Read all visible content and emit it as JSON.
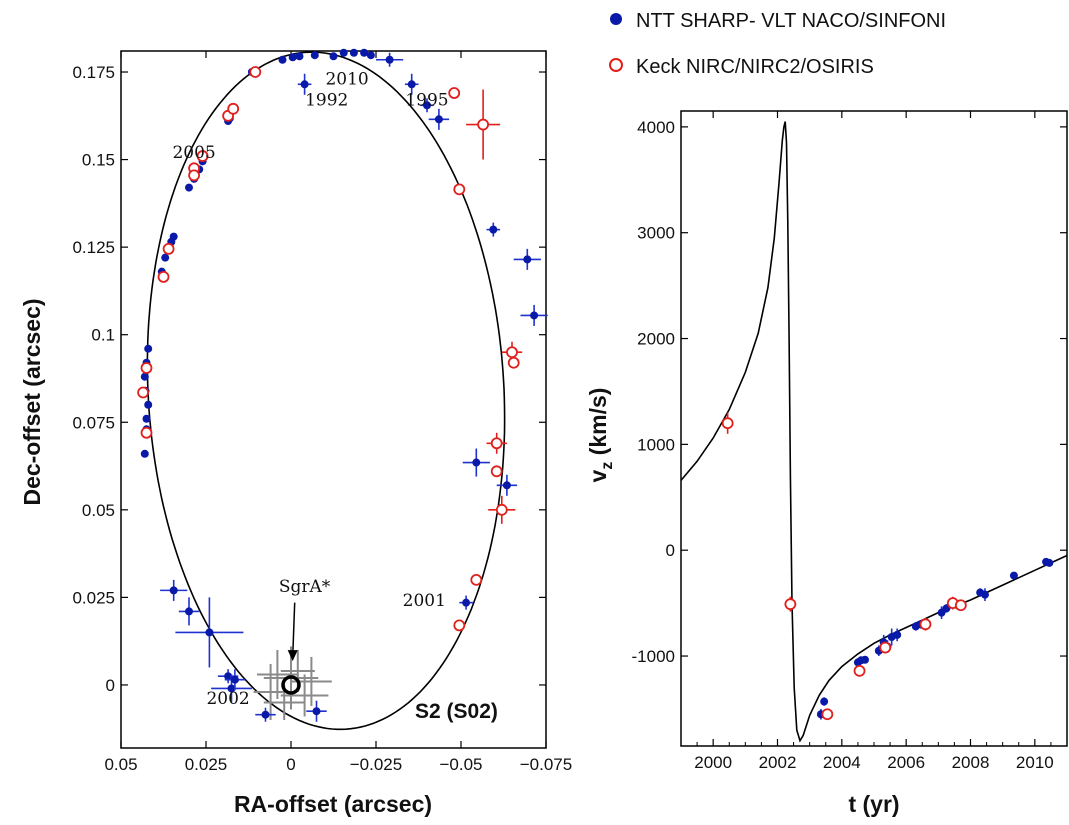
{
  "legend": {
    "entries": [
      {
        "label": "NTT SHARP- VLT NACO/SINFONI",
        "marker": "filled-circle",
        "color": "#0a1aa8"
      },
      {
        "label": "Keck NIRC/NIRC2/OSIRIS",
        "marker": "open-circle",
        "color": "#e0201b"
      }
    ]
  },
  "colors": {
    "ntt": "#1e32d0",
    "ntt_dot": "#0a1aa8",
    "keck": "#e0201b",
    "sgra": "#8a8a8a",
    "curve": "#000000"
  },
  "chart_data": [
    {
      "type": "scatter",
      "title": "",
      "panel_label": "S2 (S02)",
      "xlabel": "RA-offset (arcsec)",
      "ylabel": "Dec-offset (arcsec)",
      "xlim": [
        0.05,
        -0.075
      ],
      "ylim": [
        -0.018,
        0.181
      ],
      "x_ticks": [
        {
          "v": 0.05,
          "label": "0.05"
        },
        {
          "v": 0.025,
          "label": "0.025"
        },
        {
          "v": 0,
          "label": "0"
        },
        {
          "v": -0.025,
          "label": "−0.025"
        },
        {
          "v": -0.05,
          "label": "−0.05"
        },
        {
          "v": -0.075,
          "label": "−0.075"
        }
      ],
      "y_ticks": [
        {
          "v": 0,
          "label": "0"
        },
        {
          "v": 0.025,
          "label": "0.025"
        },
        {
          "v": 0.05,
          "label": "0.05"
        },
        {
          "v": 0.075,
          "label": "0.075"
        },
        {
          "v": 0.1,
          "label": "0.1"
        },
        {
          "v": 0.125,
          "label": "0.125"
        },
        {
          "v": 0.15,
          "label": "0.15"
        },
        {
          "v": 0.175,
          "label": "0.175"
        }
      ],
      "orbit_fit": {
        "center_x": -0.0103,
        "center_y": 0.084,
        "semi_axis_x": 0.0523,
        "semi_axis_y": 0.0968,
        "tilt_deg": -3.5
      },
      "annotations": [
        {
          "text": "2010",
          "x": -0.0165,
          "y": 0.1715
        },
        {
          "text": "1992",
          "x": -0.0105,
          "y": 0.1655
        },
        {
          "text": "1995",
          "x": -0.04,
          "y": 0.1655
        },
        {
          "text": "2005",
          "x": 0.0285,
          "y": 0.1505
        },
        {
          "text": "2001",
          "x": -0.0392,
          "y": 0.0225
        },
        {
          "text": "2002",
          "x": 0.0185,
          "y": -0.0055
        },
        {
          "text": "SgrA*",
          "x": -0.004,
          "y": 0.0265
        }
      ],
      "sgra": {
        "label": "SgrA*",
        "x": 0.0,
        "y": 0.0
      },
      "sgra_crosses": [
        [
          0.004,
          0.003,
          0.006,
          0.007
        ],
        [
          0.0,
          0.002,
          0.008,
          0.009
        ],
        [
          -0.004,
          -0.003,
          0.007,
          0.006
        ],
        [
          0.006,
          -0.002,
          0.005,
          0.008
        ],
        [
          0.002,
          -0.005,
          0.006,
          0.005
        ],
        [
          -0.002,
          0.004,
          0.005,
          0.006
        ],
        [
          -0.006,
          0.001,
          0.006,
          0.007
        ]
      ],
      "series": [
        {
          "name": "NTT SHARP- VLT NACO/SINFONI",
          "points": [
            [
              -0.004,
              0.1715,
              0.002,
              0.003
            ],
            [
              -0.0355,
              0.1715,
              0.002,
              0.003
            ],
            [
              -0.04,
              0.1655,
              0.002,
              0.002
            ],
            [
              -0.0435,
              0.1615,
              0.003,
              0.003
            ],
            [
              -0.029,
              0.1785,
              0.004,
              0.002
            ],
            [
              -0.0125,
              0.1795,
              0.0,
              0.0
            ],
            [
              -0.0155,
              0.1805,
              0.0,
              0.0
            ],
            [
              -0.0185,
              0.1805,
              0.0,
              0.0
            ],
            [
              -0.0215,
              0.1805,
              0.0,
              0.0
            ],
            [
              -0.0235,
              0.1798,
              0.0,
              0.0
            ],
            [
              -0.0025,
              0.1795,
              0.0,
              0.0
            ],
            [
              -0.0005,
              0.1792,
              0.0,
              0.0
            ],
            [
              0.0025,
              0.1785,
              0.0,
              0.0
            ],
            [
              -0.007,
              0.1798,
              0.0,
              0.0
            ],
            [
              0.0105,
              0.175,
              0.0,
              0.0
            ],
            [
              0.0115,
              0.175,
              0.0,
              0.0
            ],
            [
              0.018,
              0.1618,
              0.0,
              0.0
            ],
            [
              0.0185,
              0.161,
              0.0,
              0.0
            ],
            [
              0.026,
              0.1495,
              0.0,
              0.0
            ],
            [
              0.027,
              0.1472,
              0.0,
              0.0
            ],
            [
              0.0285,
              0.1445,
              0.0,
              0.0
            ],
            [
              0.03,
              0.142,
              0.0,
              0.0
            ],
            [
              0.0345,
              0.128,
              0.0,
              0.0
            ],
            [
              0.0352,
              0.1265,
              0.0,
              0.0
            ],
            [
              0.036,
              0.125,
              0.0,
              0.0
            ],
            [
              0.037,
              0.122,
              0.0,
              0.0
            ],
            [
              0.038,
              0.118,
              0.0,
              0.0
            ],
            [
              0.042,
              0.096,
              0.0,
              0.0
            ],
            [
              0.0425,
              0.092,
              0.0,
              0.0
            ],
            [
              0.043,
              0.088,
              0.0,
              0.0
            ],
            [
              0.0428,
              0.084,
              0.0,
              0.0
            ],
            [
              0.042,
              0.08,
              0.0,
              0.0
            ],
            [
              0.0425,
              0.076,
              0.0,
              0.0
            ],
            [
              0.0425,
              0.073,
              0.0,
              0.0
            ],
            [
              0.043,
              0.066,
              0.0,
              0.0
            ],
            [
              -0.0595,
              0.13,
              0.002,
              0.002
            ],
            [
              -0.0695,
              0.1215,
              0.004,
              0.003
            ],
            [
              -0.0715,
              0.1055,
              0.004,
              0.003
            ],
            [
              -0.0545,
              0.0635,
              0.004,
              0.004
            ],
            [
              -0.0635,
              0.057,
              0.003,
              0.003
            ],
            [
              -0.0515,
              0.0235,
              0.002,
              0.002
            ],
            [
              0.0345,
              0.027,
              0.004,
              0.003
            ],
            [
              0.03,
              0.021,
              0.003,
              0.004
            ],
            [
              0.024,
              0.015,
              0.01,
              0.01
            ],
            [
              0.0185,
              0.0025,
              0.003,
              0.002
            ],
            [
              0.0175,
              -0.001,
              0.006,
              0.004
            ],
            [
              0.0165,
              0.0015,
              0.003,
              0.003
            ],
            [
              0.0075,
              -0.0085,
              0.003,
              0.002
            ],
            [
              -0.0075,
              -0.0075,
              0.003,
              0.003
            ]
          ]
        },
        {
          "name": "Keck NIRC/NIRC2/OSIRIS",
          "points": [
            [
              -0.048,
              0.169,
              0.0,
              0.0
            ],
            [
              -0.0565,
              0.16,
              0.005,
              0.01
            ],
            [
              -0.0495,
              0.1415,
              0.0,
              0.0
            ],
            [
              0.0105,
              0.175,
              0.0,
              0.0
            ],
            [
              0.0185,
              0.1625,
              0.0,
              0.0
            ],
            [
              0.017,
              0.1645,
              0.0,
              0.0
            ],
            [
              0.026,
              0.151,
              0.0,
              0.0
            ],
            [
              0.0285,
              0.1475,
              0.0,
              0.0
            ],
            [
              0.0285,
              0.1455,
              0.0,
              0.0
            ],
            [
              0.036,
              0.1245,
              0.0,
              0.0
            ],
            [
              0.0375,
              0.1165,
              0.0,
              0.0
            ],
            [
              0.0425,
              0.0905,
              0.0,
              0.0
            ],
            [
              0.0435,
              0.0835,
              0.0,
              0.0
            ],
            [
              0.0425,
              0.072,
              0.0,
              0.0
            ],
            [
              -0.065,
              0.095,
              0.003,
              0.003
            ],
            [
              -0.0655,
              0.092,
              0.0,
              0.0
            ],
            [
              -0.0605,
              0.069,
              0.003,
              0.003
            ],
            [
              -0.0605,
              0.061,
              0.0,
              0.0
            ],
            [
              -0.062,
              0.05,
              0.004,
              0.004
            ],
            [
              -0.0545,
              0.03,
              0.0,
              0.0
            ],
            [
              -0.0495,
              0.017,
              0.0,
              0.0
            ]
          ]
        }
      ]
    },
    {
      "type": "line",
      "title": "",
      "xlabel": "t (yr)",
      "ylabel": "v_z (km/s)",
      "xlim": [
        1999.0,
        2011.0
      ],
      "ylim": [
        -1850,
        4150
      ],
      "x_ticks": [
        {
          "v": 2000,
          "label": "2000"
        },
        {
          "v": 2002,
          "label": "2002"
        },
        {
          "v": 2004,
          "label": "2004"
        },
        {
          "v": 2006,
          "label": "2006"
        },
        {
          "v": 2008,
          "label": "2008"
        },
        {
          "v": 2010,
          "label": "2010"
        }
      ],
      "y_ticks": [
        {
          "v": -1000,
          "label": "-1000"
        },
        {
          "v": 0,
          "label": "0"
        },
        {
          "v": 1000,
          "label": "1000"
        },
        {
          "v": 2000,
          "label": "2000"
        },
        {
          "v": 3000,
          "label": "3000"
        },
        {
          "v": 4000,
          "label": "4000"
        }
      ],
      "model_curve": {
        "x": [
          1999.0,
          1999.5,
          2000.0,
          2000.5,
          2001.0,
          2001.4,
          2001.7,
          2001.9,
          2002.05,
          2002.15,
          2002.2,
          2002.24,
          2002.28,
          2002.32,
          2002.36,
          2002.4,
          2002.45,
          2002.52,
          2002.6,
          2002.7,
          2002.8,
          2003.0,
          2003.3,
          2003.6,
          2004.0,
          2004.5,
          2005.0,
          2005.5,
          2006.0,
          2006.5,
          2007.0,
          2007.5,
          2008.0,
          2008.5,
          2009.0,
          2009.5,
          2010.0,
          2010.5,
          2011.0
        ],
        "y": [
          660,
          840,
          1060,
          1330,
          1680,
          2050,
          2480,
          2950,
          3480,
          3870,
          4000,
          4050,
          3850,
          3100,
          2000,
          700,
          -500,
          -1300,
          -1700,
          -1800,
          -1750,
          -1560,
          -1370,
          -1230,
          -1100,
          -980,
          -880,
          -800,
          -730,
          -660,
          -590,
          -530,
          -470,
          -400,
          -330,
          -260,
          -190,
          -120,
          -50
        ]
      },
      "series": [
        {
          "name": "NTT SHARP- VLT NACO/SINFONI",
          "points": [
            [
              2003.35,
              -1550,
              0.05,
              50
            ],
            [
              2003.45,
              -1430,
              0.05,
              40
            ],
            [
              2004.5,
              -1060,
              0.05,
              40
            ],
            [
              2004.6,
              -1040,
              0.05,
              30
            ],
            [
              2004.72,
              -1035,
              0.05,
              30
            ],
            [
              2005.15,
              -950,
              0.05,
              50
            ],
            [
              2005.3,
              -870,
              0.05,
              70
            ],
            [
              2005.42,
              -910,
              0.05,
              60
            ],
            [
              2005.55,
              -820,
              0.05,
              80
            ],
            [
              2005.72,
              -800,
              0.05,
              60
            ],
            [
              2006.3,
              -720,
              0.05,
              40
            ],
            [
              2006.45,
              -700,
              0.05,
              40
            ],
            [
              2006.6,
              -690,
              0.05,
              40
            ],
            [
              2007.1,
              -590,
              0.05,
              60
            ],
            [
              2007.25,
              -550,
              0.05,
              40
            ],
            [
              2007.6,
              -520,
              0.05,
              40
            ],
            [
              2008.3,
              -400,
              0.05,
              40
            ],
            [
              2008.45,
              -420,
              0.05,
              60
            ],
            [
              2009.35,
              -240,
              0.05,
              30
            ],
            [
              2010.35,
              -110,
              0.05,
              30
            ],
            [
              2010.45,
              -120,
              0.05,
              30
            ]
          ]
        },
        {
          "name": "Keck NIRC/NIRC2/OSIRIS",
          "points": [
            [
              2000.45,
              1200,
              0.05,
              100
            ],
            [
              2002.4,
              -510,
              0.06,
              70
            ],
            [
              2003.55,
              -1550,
              0.06,
              40
            ],
            [
              2004.55,
              -1140,
              0.06,
              50
            ],
            [
              2005.35,
              -920,
              0.06,
              50
            ],
            [
              2006.6,
              -700,
              0.06,
              60
            ],
            [
              2007.45,
              -500,
              0.06,
              60
            ],
            [
              2007.7,
              -520,
              0.06,
              40
            ]
          ]
        }
      ]
    }
  ]
}
